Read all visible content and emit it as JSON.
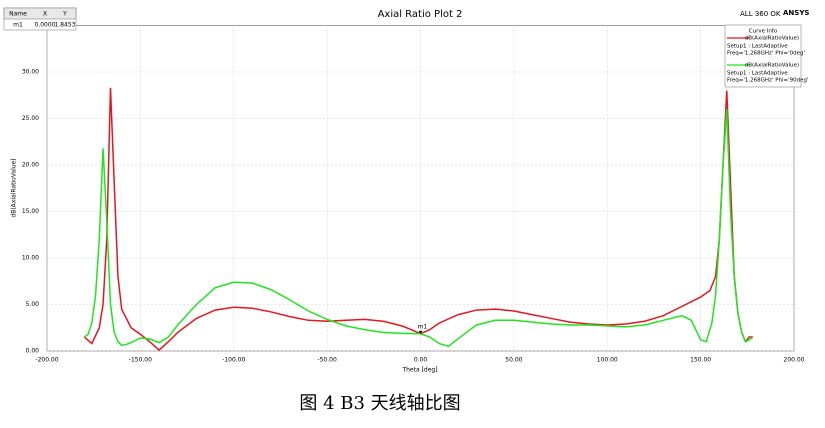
{
  "chart_data": {
    "type": "line",
    "title": "Axial Ratio Plot 2",
    "x_label": "Theta [deg]",
    "y_label": "dB(AxialRatioValue)",
    "status": "ALL 360 OK",
    "brand": "ANSYS",
    "legend_title": "Curve Info",
    "grid": true,
    "xlim": [
      -200,
      200
    ],
    "ylim": [
      0,
      35
    ],
    "xticks": [
      {
        "value": -200,
        "label": "-200.00"
      },
      {
        "value": -150,
        "label": "-150.00"
      },
      {
        "value": -100,
        "label": "-100.00"
      },
      {
        "value": -50,
        "label": "-50.00"
      },
      {
        "value": 0,
        "label": "0.00"
      },
      {
        "value": 50,
        "label": "50.00"
      },
      {
        "value": 100,
        "label": "100.00"
      },
      {
        "value": 150,
        "label": "150.00"
      },
      {
        "value": 200,
        "label": "200.00"
      }
    ],
    "yticks": [
      {
        "value": 0,
        "label": "0.00"
      },
      {
        "value": 5,
        "label": "5.00"
      },
      {
        "value": 10,
        "label": "10.00"
      },
      {
        "value": 15,
        "label": "15.00"
      },
      {
        "value": 20,
        "label": "20.00"
      },
      {
        "value": 25,
        "label": "25.00"
      },
      {
        "value": 30,
        "label": "30.00"
      }
    ],
    "series": [
      {
        "name": "dB(AxialRatioValue)",
        "setup": "Setup1 : LastAdaptive",
        "params": "Freq='1.268GHz' Phi='0deg'",
        "color": "#e8141e",
        "x": [
          -180,
          -176,
          -172,
          -170,
          -168,
          -166,
          -164,
          -162,
          -160,
          -155,
          -150,
          -145,
          -140,
          -135,
          -130,
          -120,
          -110,
          -100,
          -90,
          -80,
          -70,
          -60,
          -50,
          -40,
          -30,
          -20,
          -10,
          -5,
          0,
          5,
          10,
          20,
          30,
          40,
          50,
          60,
          70,
          80,
          90,
          100,
          110,
          120,
          130,
          140,
          150,
          155,
          158,
          160,
          162,
          164,
          166,
          168,
          170,
          172,
          174,
          176,
          178
        ],
        "values": [
          1.5,
          0.8,
          2.5,
          5,
          12,
          28.3,
          18,
          8,
          4.5,
          2.5,
          1.8,
          1.0,
          0.1,
          1.0,
          2,
          3.5,
          4.4,
          4.7,
          4.6,
          4.2,
          3.7,
          3.3,
          3.2,
          3.3,
          3.4,
          3.2,
          2.7,
          2.3,
          1.85,
          2.3,
          3,
          3.9,
          4.4,
          4.5,
          4.3,
          3.9,
          3.5,
          3.1,
          2.9,
          2.8,
          2.9,
          3.2,
          3.8,
          4.8,
          5.8,
          6.5,
          8,
          12,
          20,
          28,
          18,
          8,
          4,
          2,
          1,
          1.5,
          1.5
        ]
      },
      {
        "name": "dB(AxialRatioValue)",
        "setup": "Setup1 : LastAdaptive",
        "params": "Freq='1.268GHz' Phi='90deg'",
        "color": "#1ee61e",
        "x": [
          -180,
          -178,
          -176,
          -174,
          -172,
          -170,
          -168,
          -166,
          -164,
          -162,
          -160,
          -156,
          -150,
          -145,
          -140,
          -135,
          -130,
          -120,
          -110,
          -100,
          -90,
          -80,
          -70,
          -60,
          -50,
          -40,
          -30,
          -20,
          -10,
          0,
          5,
          10,
          15,
          20,
          30,
          40,
          50,
          60,
          70,
          80,
          90,
          100,
          110,
          120,
          130,
          140,
          145,
          150,
          153,
          156,
          158,
          160,
          162,
          164,
          166,
          168,
          170,
          172,
          174,
          176,
          178
        ],
        "values": [
          1.5,
          1.8,
          3,
          6,
          12,
          21.8,
          14,
          5,
          2,
          1,
          0.6,
          0.8,
          1.4,
          1.3,
          0.9,
          1.5,
          2.8,
          5,
          6.8,
          7.4,
          7.3,
          6.6,
          5.5,
          4.3,
          3.4,
          2.7,
          2.3,
          2.0,
          1.9,
          1.85,
          1.5,
          0.8,
          0.5,
          1.3,
          2.8,
          3.3,
          3.3,
          3.1,
          2.9,
          2.8,
          2.8,
          2.7,
          2.6,
          2.8,
          3.3,
          3.8,
          3.3,
          1.2,
          1.0,
          3,
          6,
          12,
          20,
          26,
          15,
          8,
          4,
          2,
          1,
          1.2,
          1.5
        ]
      }
    ],
    "marker_table": {
      "headers": [
        "Name",
        "X",
        "Y"
      ],
      "name": "m1",
      "x": {
        "value": 0,
        "label": "0.0000"
      },
      "y": 1.8453
    }
  },
  "caption": "图 4 B3 天线轴比图"
}
